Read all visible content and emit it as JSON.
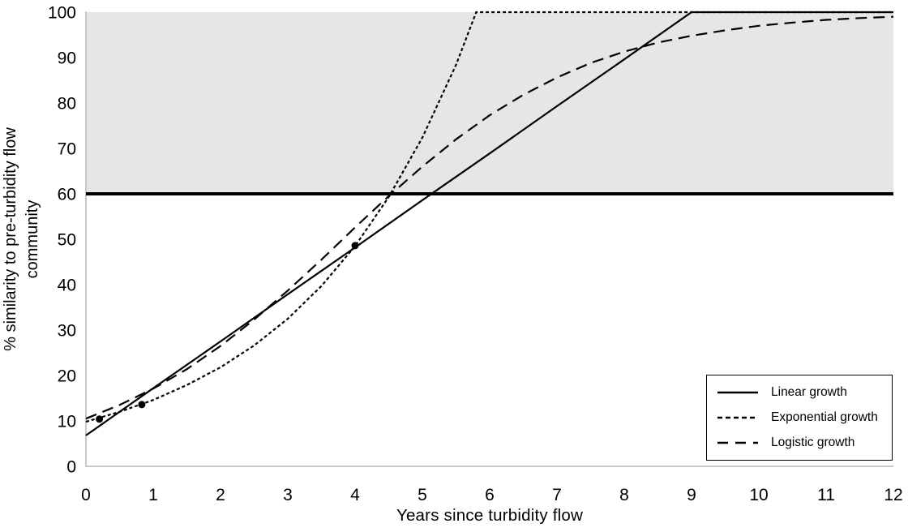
{
  "figure": {
    "background_color": "#ffffff"
  },
  "chart_data": {
    "type": "line",
    "title": "",
    "xlabel": "Years since turbidity flow",
    "ylabel": "% similarity to pre-turbidity flow community",
    "ylabel_lines": [
      "% similarity to pre-turbidity flow",
      "community"
    ],
    "xlim": [
      0,
      12
    ],
    "ylim": [
      0,
      100
    ],
    "xticks": [
      0,
      1,
      2,
      3,
      4,
      5,
      6,
      7,
      8,
      9,
      10,
      11,
      12
    ],
    "yticks": [
      0,
      10,
      20,
      30,
      40,
      50,
      60,
      70,
      80,
      90,
      100
    ],
    "grid": false,
    "axis_color": "#c8c8c8",
    "text_color": "#000000",
    "line_color": "#000000",
    "shaded_region": {
      "from_y": 60,
      "to_y": 100,
      "color": "#e6e6e6"
    },
    "threshold_line": {
      "y": 60,
      "color": "#000000",
      "width": 4
    },
    "series": [
      {
        "name": "Linear growth",
        "style": "solid",
        "points": [
          [
            0,
            6.8
          ],
          [
            1,
            17.2
          ],
          [
            2,
            27.5
          ],
          [
            3,
            37.9
          ],
          [
            4,
            48.2
          ],
          [
            5,
            58.6
          ],
          [
            6,
            68.9
          ],
          [
            7,
            79.3
          ],
          [
            8,
            89.6
          ],
          [
            9,
            100
          ],
          [
            12,
            100
          ]
        ]
      },
      {
        "name": "Exponential growth",
        "style": "short-dash",
        "points": [
          [
            0,
            9.8
          ],
          [
            0.5,
            12.0
          ],
          [
            1,
            14.6
          ],
          [
            1.5,
            17.9
          ],
          [
            2,
            21.8
          ],
          [
            2.5,
            26.6
          ],
          [
            3,
            32.5
          ],
          [
            3.5,
            39.7
          ],
          [
            4,
            48.5
          ],
          [
            4.5,
            59.3
          ],
          [
            5,
            72.4
          ],
          [
            5.5,
            88.4
          ],
          [
            5.8,
            100
          ],
          [
            12,
            100
          ]
        ]
      },
      {
        "name": "Logistic growth",
        "style": "long-dash",
        "points": [
          [
            0,
            10.5
          ],
          [
            0.5,
            13.5
          ],
          [
            1,
            17.1
          ],
          [
            1.5,
            21.4
          ],
          [
            2,
            26.5
          ],
          [
            2.5,
            32.3
          ],
          [
            3,
            38.7
          ],
          [
            3.5,
            45.5
          ],
          [
            4,
            52.6
          ],
          [
            4.5,
            59.5
          ],
          [
            5,
            66.0
          ],
          [
            5.5,
            72.0
          ],
          [
            6,
            77.3
          ],
          [
            6.5,
            81.8
          ],
          [
            7,
            85.6
          ],
          [
            7.5,
            88.8
          ],
          [
            8,
            91.3
          ],
          [
            8.5,
            93.3
          ],
          [
            9,
            94.8
          ],
          [
            9.5,
            96.0
          ],
          [
            10,
            97.0
          ],
          [
            10.5,
            97.7
          ],
          [
            11,
            98.3
          ],
          [
            11.5,
            98.7
          ],
          [
            12,
            99.0
          ]
        ]
      }
    ],
    "data_points": [
      [
        0.2,
        10.4
      ],
      [
        0.83,
        13.6
      ],
      [
        4,
        48.6
      ]
    ],
    "legend": {
      "position": "lower-right",
      "items": [
        "Linear growth",
        "Exponential growth",
        "Logistic growth"
      ]
    }
  }
}
